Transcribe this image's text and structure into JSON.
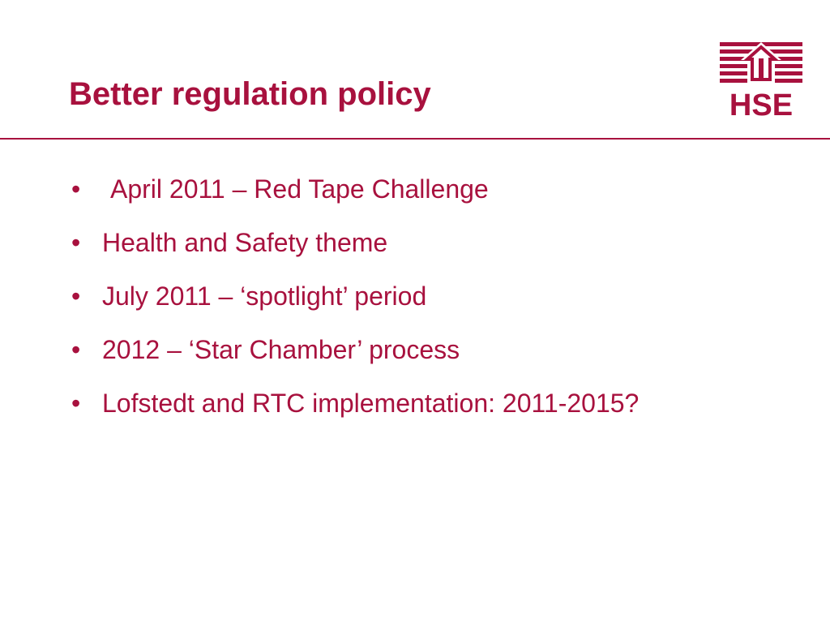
{
  "slide": {
    "title": "Better regulation policy",
    "logo_text": "HSE",
    "colors": {
      "accent": "#a8113e",
      "background": "#ffffff"
    },
    "bullet_glyph": "•",
    "bullets": [
      {
        "text": "April 2011 – Red Tape Challenge"
      },
      {
        "text": "Health and Safety theme"
      },
      {
        "text": "July 2011 – ‘spotlight’ period"
      },
      {
        "text": "2012 – ‘Star Chamber’ process"
      },
      {
        "text": "Lofstedt and RTC implementation: 2011-2015?"
      }
    ]
  }
}
